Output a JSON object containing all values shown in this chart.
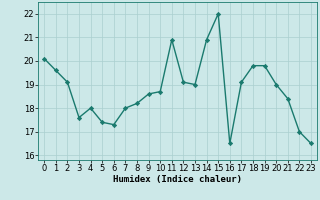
{
  "x": [
    0,
    1,
    2,
    3,
    4,
    5,
    6,
    7,
    8,
    9,
    10,
    11,
    12,
    13,
    14,
    15,
    16,
    17,
    18,
    19,
    20,
    21,
    22,
    23
  ],
  "y": [
    20.1,
    19.6,
    19.1,
    17.6,
    18.0,
    17.4,
    17.3,
    18.0,
    18.2,
    18.6,
    18.7,
    20.9,
    19.1,
    19.0,
    20.9,
    22.0,
    16.5,
    19.1,
    19.8,
    19.8,
    19.0,
    18.4,
    17.0,
    16.5
  ],
  "line_color": "#1a7a6e",
  "marker": "D",
  "markersize": 2.2,
  "linewidth": 1.0,
  "bg_color": "#cce8e8",
  "grid_color": "#aacfcf",
  "xlabel": "Humidex (Indice chaleur)",
  "xlabel_fontsize": 6.5,
  "tick_fontsize": 6.0,
  "xlim": [
    -0.5,
    23.5
  ],
  "ylim": [
    15.8,
    22.5
  ],
  "yticks": [
    16,
    17,
    18,
    19,
    20,
    21,
    22
  ],
  "xticks": [
    0,
    1,
    2,
    3,
    4,
    5,
    6,
    7,
    8,
    9,
    10,
    11,
    12,
    13,
    14,
    15,
    16,
    17,
    18,
    19,
    20,
    21,
    22,
    23
  ]
}
